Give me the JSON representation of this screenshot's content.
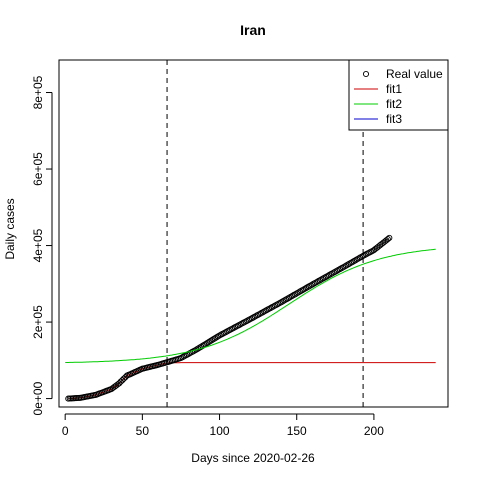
{
  "chart_data": {
    "type": "line",
    "title": "Iran",
    "xlabel": "Days since 2020-02-26",
    "ylabel": "Daily cases",
    "xlim": [
      -4,
      248
    ],
    "ylim": [
      -22000,
      885000
    ],
    "x_ticks": [
      {
        "value": 0,
        "label": "0"
      },
      {
        "value": 50,
        "label": "50"
      },
      {
        "value": 100,
        "label": "100"
      },
      {
        "value": 150,
        "label": "150"
      },
      {
        "value": 200,
        "label": "200"
      }
    ],
    "y_ticks": [
      {
        "value": 0,
        "label": "0e+00"
      },
      {
        "value": 200000,
        "label": "2e+05"
      },
      {
        "value": 400000,
        "label": "4e+05"
      },
      {
        "value": 600000,
        "label": "6e+05"
      },
      {
        "value": 800000,
        "label": "8e+05"
      }
    ],
    "vlines": [
      66,
      193
    ],
    "grid": false,
    "legend_position": "top-right",
    "legend": [
      {
        "label": "Real value",
        "kind": "point",
        "color": "#000000"
      },
      {
        "label": "fit1",
        "kind": "line",
        "color": "#cc0000"
      },
      {
        "label": "fit2",
        "kind": "line",
        "color": "#00cc00"
      },
      {
        "label": "fit3",
        "kind": "line",
        "color": "#0000cc"
      }
    ],
    "real_value": {
      "name": "Real value",
      "x_start": 2,
      "x_end": 210,
      "knots": [
        [
          2,
          0
        ],
        [
          10,
          2000
        ],
        [
          20,
          10000
        ],
        [
          30,
          25000
        ],
        [
          35,
          40000
        ],
        [
          40,
          60000
        ],
        [
          50,
          78000
        ],
        [
          60,
          88000
        ],
        [
          66,
          95000
        ],
        [
          75,
          106000
        ],
        [
          85,
          128000
        ],
        [
          100,
          165000
        ],
        [
          120,
          208000
        ],
        [
          140,
          252000
        ],
        [
          160,
          298000
        ],
        [
          180,
          343000
        ],
        [
          193,
          373000
        ],
        [
          200,
          388000
        ],
        [
          210,
          420000
        ]
      ]
    },
    "fit1": {
      "name": "fit1",
      "color": "#cc0000",
      "x_start": 2,
      "x_end": 240,
      "knots": [
        [
          2,
          0
        ],
        [
          10,
          2000
        ],
        [
          20,
          10000
        ],
        [
          30,
          25000
        ],
        [
          35,
          40000
        ],
        [
          40,
          60000
        ],
        [
          50,
          78000
        ],
        [
          60,
          88000
        ],
        [
          66,
          93000
        ],
        [
          75,
          94000
        ],
        [
          240,
          94000
        ]
      ]
    },
    "fit2": {
      "name": "fit2",
      "color": "#00cc00",
      "x_start": 66,
      "x_end": 240,
      "x_start_left": 0,
      "logistic": {
        "floor": 92000,
        "amplitude": 310000,
        "midpoint": 145,
        "rate": 0.034
      }
    }
  }
}
